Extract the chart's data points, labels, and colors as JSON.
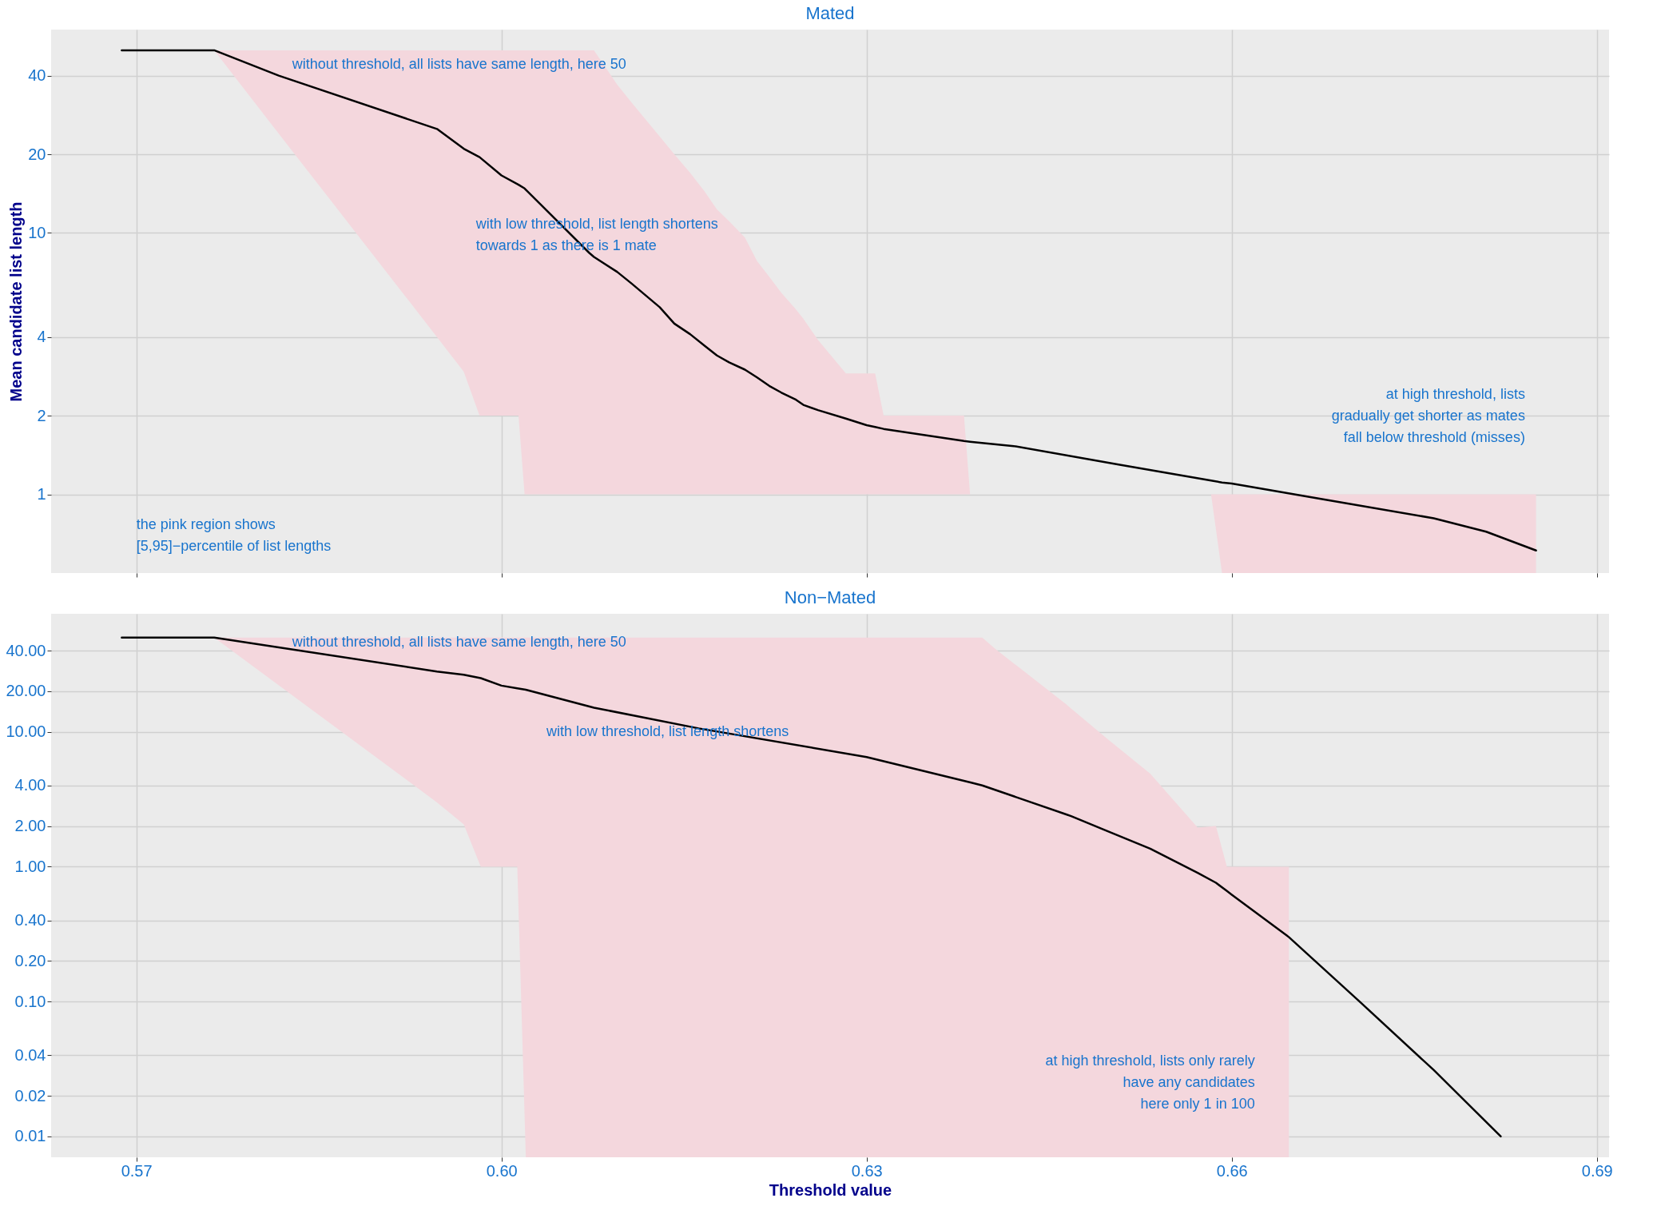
{
  "chart_data": [
    {
      "type": "line",
      "title": "Mated",
      "ylabel": "Mean candidate list length",
      "log": true,
      "grid": true,
      "tick_labels": "y",
      "xlim": [
        0.563,
        0.691
      ],
      "xticks": [
        0.57,
        0.6,
        0.63,
        0.66,
        0.69
      ],
      "ylim": [
        0.5,
        60
      ],
      "yticks": [
        1,
        2,
        4,
        10,
        20,
        40
      ],
      "series": [
        {
          "color": "#000000",
          "x": [
            0.5688,
            0.5764,
            0.5817,
            0.5947,
            0.5969,
            0.5982,
            0.6,
            0.6014,
            0.6019,
            0.6072,
            0.6076,
            0.6095,
            0.6107,
            0.613,
            0.6142,
            0.6155,
            0.6167,
            0.6177,
            0.6187,
            0.62,
            0.621,
            0.622,
            0.623,
            0.6242,
            0.6248,
            0.626,
            0.6283,
            0.63,
            0.6307,
            0.6314,
            0.638,
            0.6385,
            0.6421,
            0.6507,
            0.6583,
            0.6592,
            0.66,
            0.6679,
            0.6766,
            0.6809,
            0.685
          ],
          "values": [
            50,
            50,
            40,
            25,
            21,
            19.5,
            16.6,
            15.3,
            14.8,
            8.4,
            8.1,
            7.1,
            6.4,
            5.2,
            4.5,
            4.1,
            3.7,
            3.4,
            3.2,
            3,
            2.8,
            2.6,
            2.45,
            2.3,
            2.2,
            2.1,
            1.95,
            1.84,
            1.81,
            1.78,
            1.6,
            1.59,
            1.53,
            1.3,
            1.13,
            1.11,
            1.1,
            0.95,
            0.81,
            0.72,
            0.61
          ],
          "lower": [
            null,
            50,
            24,
            4,
            2.95,
            2,
            2,
            2,
            1,
            1,
            1,
            1,
            1,
            1,
            1,
            1,
            1,
            1,
            1,
            1,
            1,
            1,
            1,
            1,
            1,
            1,
            1,
            1,
            1,
            1,
            1,
            1,
            null,
            null,
            1,
            0.5,
            0.5,
            0.5,
            0.5,
            0.5,
            0.5
          ],
          "upper": [
            null,
            50,
            50,
            50,
            50,
            50,
            50,
            50,
            50,
            50,
            50,
            37,
            31.5,
            23.4,
            20,
            17,
            14.4,
            12.3,
            11.1,
            9.6,
            7.8,
            6.8,
            5.9,
            5.1,
            4.7,
            3.9,
            2.9,
            2.9,
            2.9,
            2,
            2,
            1,
            null,
            null,
            1,
            1,
            1,
            1,
            1,
            1,
            1
          ]
        }
      ],
      "annotations": [
        "without threshold, all lists have same length, here 50",
        "with low threshold, list length shortens\ntowards 1 as there is 1 mate",
        "at high threshold, lists\ngradually get shorter as mates\nfall below threshold (misses)",
        "the pink region shows\n[5,95]−percentile of list lengths"
      ]
    },
    {
      "type": "line",
      "title": "Non−Mated",
      "xlabel": "Threshold value",
      "log": true,
      "grid": true,
      "xlim": [
        0.563,
        0.691
      ],
      "xticks": [
        0.57,
        {
          "value": 0.6,
          "label": "0.60"
        },
        0.63,
        0.66,
        0.69
      ],
      "ylim": [
        0.007,
        75
      ],
      "yticks": [
        0.01,
        0.02,
        0.04,
        {
          "value": 0.1,
          "label": "0.10"
        },
        {
          "value": 0.2,
          "label": "0.20"
        },
        {
          "value": 0.4,
          "label": "0.40"
        },
        {
          "value": 1,
          "label": "1.00"
        },
        {
          "value": 2,
          "label": "2.00"
        },
        {
          "value": 4,
          "label": "4.00"
        },
        {
          "value": 10,
          "label": "10.00"
        },
        {
          "value": 20,
          "label": "20.00"
        },
        {
          "value": 40,
          "label": "40.00"
        }
      ],
      "series": [
        {
          "color": "#000000",
          "x": [
            0.5688,
            0.5764,
            0.5947,
            0.5969,
            0.5983,
            0.6,
            0.6013,
            0.602,
            0.6076,
            0.6162,
            0.63,
            0.6386,
            0.6395,
            0.6406,
            0.6464,
            0.6468,
            0.6497,
            0.6533,
            0.6572,
            0.6587,
            0.6596,
            0.66,
            0.6645,
            0.6647,
            0.6705,
            0.6766,
            0.6821
          ],
          "values": [
            50,
            50,
            28,
            26.5,
            25,
            22,
            21,
            20.5,
            15.1,
            10.6,
            6.5,
            4.2,
            4,
            3.7,
            2.44,
            2.37,
            1.85,
            1.36,
            0.9,
            0.76,
            0.66,
            0.62,
            0.31,
            0.3,
            0.1,
            0.031,
            0.01
          ],
          "lower": [
            null,
            50,
            3,
            2.06,
            1,
            1,
            1,
            0.007,
            0.007,
            0.007,
            0.007,
            0.007,
            0.007,
            0.007,
            0.007,
            0.007,
            0.007,
            0.007,
            0.007,
            0.007,
            0.007,
            0.007,
            0.007,
            0.007,
            null,
            null,
            null
          ],
          "upper": [
            null,
            50,
            50,
            50,
            50,
            50,
            50,
            50,
            50,
            50,
            50,
            50,
            50,
            41,
            16,
            14.9,
            9,
            4.9,
            1.95,
            2,
            1,
            1,
            1,
            1,
            null,
            null,
            null
          ]
        }
      ],
      "annotations": [
        "without threshold, all lists have same length, here 50",
        "with low threshold, list length shortens",
        "at high threshold, lists only rarely\nhave any candidates\nhere only 1 in 100"
      ]
    }
  ]
}
